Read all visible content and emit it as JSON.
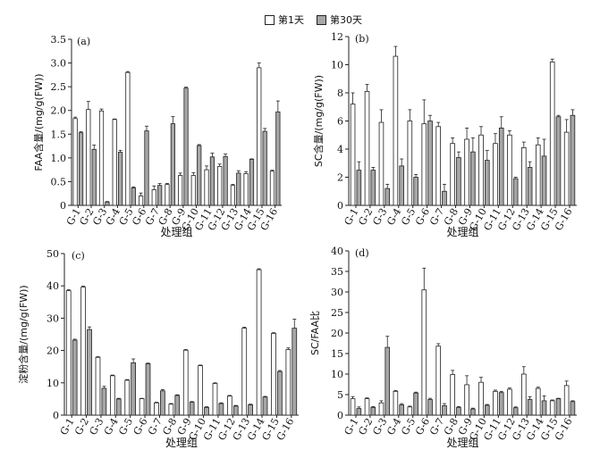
{
  "legend": {
    "day1": "第1天",
    "day30": "第30天"
  },
  "colors": {
    "day1": "#ffffff",
    "day30": "#a6a6a6",
    "stroke": "#222222"
  },
  "chart_data": [
    {
      "type": "bar",
      "panel": "(a)",
      "ylabel": "FAA含量/(mg/g(FW))",
      "xlabel": "处理组",
      "ylim": [
        0,
        3.5
      ],
      "yticks": [
        "0",
        "0.5",
        "1.0",
        "1.5",
        "2.0",
        "2.5",
        "3.0",
        "3.5"
      ],
      "categories": [
        "G-1",
        "G-2",
        "G-3",
        "G-4",
        "G-5",
        "G-6",
        "G-7",
        "G-8",
        "G-9",
        "G-10",
        "G-11",
        "G-12",
        "G-13",
        "G-14",
        "G-15",
        "G-16"
      ],
      "series": [
        {
          "name": "第1天",
          "values": [
            1.83,
            2.02,
            1.99,
            1.81,
            2.8,
            0.2,
            0.33,
            0.44,
            0.63,
            0.63,
            0.75,
            0.82,
            0.42,
            0.67,
            2.9,
            0.72
          ],
          "errors": [
            0.03,
            0.17,
            0.04,
            0.01,
            0.02,
            0.06,
            0.08,
            0.02,
            0.05,
            0.06,
            0.08,
            0.05,
            0.02,
            0.04,
            0.1,
            0.02
          ]
        },
        {
          "name": "第30天",
          "values": [
            1.53,
            1.18,
            0.07,
            1.12,
            0.37,
            1.57,
            0.42,
            1.72,
            2.47,
            1.26,
            1.02,
            1.03,
            0.68,
            0.97,
            1.56,
            1.97
          ],
          "errors": [
            0.02,
            0.09,
            0.01,
            0.04,
            0.02,
            0.1,
            0.04,
            0.15,
            0.02,
            0.02,
            0.08,
            0.05,
            0.05,
            0.01,
            0.06,
            0.23
          ]
        }
      ]
    },
    {
      "type": "bar",
      "panel": "(b)",
      "ylabel": "SC含量/(mg/g(FW))",
      "xlabel": "处理组",
      "ylim": [
        0,
        12
      ],
      "yticks": [
        "0",
        "2",
        "4",
        "6",
        "8",
        "10",
        "12"
      ],
      "categories": [
        "G-1",
        "G-2",
        "G-3",
        "G-4",
        "G-5",
        "G-6",
        "G-7",
        "G-8",
        "G-9",
        "G-10",
        "G-11",
        "G-12",
        "G-13",
        "G-14",
        "G-15",
        "G-16"
      ],
      "series": [
        {
          "name": "第1天",
          "values": [
            7.2,
            8.1,
            5.9,
            10.6,
            6.0,
            5.8,
            5.6,
            4.4,
            4.7,
            5.0,
            4.4,
            5.0,
            4.1,
            4.3,
            10.2,
            5.2
          ],
          "errors": [
            0.8,
            0.5,
            0.9,
            0.7,
            0.8,
            1.7,
            0.3,
            0.4,
            0.8,
            0.6,
            0.7,
            0.3,
            0.4,
            0.5,
            0.2,
            0.9
          ]
        },
        {
          "name": "第30天",
          "values": [
            2.5,
            2.5,
            1.2,
            2.8,
            2.0,
            6.0,
            1.0,
            3.4,
            3.8,
            3.2,
            5.5,
            1.9,
            2.7,
            3.5,
            6.3,
            6.4
          ],
          "errors": [
            0.6,
            0.2,
            0.3,
            0.5,
            0.2,
            0.4,
            0.5,
            0.4,
            1.0,
            0.7,
            0.8,
            0.1,
            0.4,
            1.2,
            0.1,
            0.4
          ]
        }
      ]
    },
    {
      "type": "bar",
      "panel": "(c)",
      "ylabel": "淀粉含量/(mg/g(FW))",
      "xlabel": "处理组",
      "ylim": [
        0,
        50
      ],
      "yticks": [
        "0",
        "10",
        "20",
        "30",
        "40",
        "50"
      ],
      "categories": [
        "G-1",
        "G-2",
        "G-3",
        "G-4",
        "G-5",
        "G-6",
        "G-7",
        "G-8",
        "G-9",
        "G-10",
        "G-11",
        "G-12",
        "G-13",
        "G-14",
        "G-15",
        "G-16"
      ],
      "series": [
        {
          "name": "第1天",
          "values": [
            38.5,
            39.6,
            17.9,
            12.2,
            10.8,
            5.1,
            3.8,
            3.4,
            20.1,
            15.3,
            9.8,
            5.9,
            26.9,
            45.0,
            25.3,
            20.3
          ],
          "errors": [
            0.3,
            0.3,
            0.2,
            0.2,
            0.2,
            0.1,
            0.2,
            0.2,
            0.2,
            0.2,
            0.2,
            0.2,
            0.3,
            0.3,
            0.2,
            0.5
          ]
        },
        {
          "name": "第30天",
          "values": [
            23.2,
            26.5,
            8.3,
            5.0,
            16.2,
            15.9,
            7.5,
            6.1,
            4.0,
            2.4,
            3.6,
            2.8,
            3.2,
            5.6,
            13.5,
            26.9
          ],
          "errors": [
            0.3,
            0.8,
            0.6,
            0.2,
            1.2,
            0.2,
            0.4,
            0.2,
            0.2,
            0.2,
            0.2,
            0.2,
            0.2,
            0.2,
            0.3,
            2.8
          ]
        }
      ]
    },
    {
      "type": "bar",
      "panel": "(d)",
      "ylabel": "SC/FAA比",
      "xlabel": "处理组",
      "ylim": [
        0,
        40
      ],
      "yticks": [
        "0",
        "5",
        "10",
        "15",
        "20",
        "25",
        "30",
        "35",
        "40"
      ],
      "categories": [
        "G-1",
        "G-2",
        "G-3",
        "G-4",
        "G-5",
        "G-6",
        "G-7",
        "G-8",
        "G-9",
        "G-10",
        "G-11",
        "G-12",
        "G-13",
        "G-14",
        "G-15",
        "G-16"
      ],
      "series": [
        {
          "name": "第1天",
          "values": [
            4.0,
            4.0,
            3.0,
            5.8,
            2.0,
            30.5,
            16.8,
            9.9,
            7.4,
            8.0,
            5.8,
            6.3,
            10.0,
            6.5,
            3.5,
            7.2
          ],
          "errors": [
            0.5,
            0.2,
            0.5,
            0.2,
            0.2,
            5.3,
            0.6,
            1.0,
            2.2,
            1.2,
            0.3,
            0.3,
            1.8,
            0.3,
            0.2,
            1.1
          ]
        },
        {
          "name": "第30天",
          "values": [
            1.6,
            1.9,
            16.5,
            2.5,
            5.4,
            3.8,
            2.3,
            1.9,
            1.5,
            2.4,
            5.5,
            1.8,
            3.8,
            3.5,
            4.0,
            3.3
          ],
          "errors": [
            0.4,
            0.2,
            2.7,
            0.3,
            0.2,
            0.3,
            0.5,
            0.2,
            0.2,
            0.2,
            0.3,
            0.2,
            0.7,
            1.2,
            0.1,
            0.2
          ]
        }
      ]
    }
  ]
}
